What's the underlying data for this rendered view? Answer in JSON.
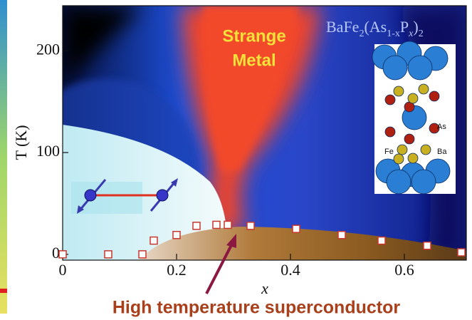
{
  "chart_data": {
    "type": "scatter",
    "x_label": "x",
    "y_label": "T (K)",
    "xlim": [
      0,
      0.7
    ],
    "ylim": [
      -5,
      245
    ],
    "xticks": [
      0,
      0.2,
      0.4,
      0.6
    ],
    "yticks": [
      0,
      100,
      200
    ],
    "marker_color": "#c8372d",
    "series": [
      {
        "x": [
          0,
          0.08,
          0.14,
          0.16,
          0.2,
          0.235,
          0.27,
          0.29,
          0.33,
          0.41,
          0.49,
          0.56,
          0.64,
          0.7
        ],
        "values": [
          0,
          0,
          0,
          13.5,
          19,
          28,
          29,
          29,
          28,
          25,
          19,
          13.5,
          8.5,
          2
        ]
      }
    ],
    "annotations": {
      "region_label": [
        "Strange",
        "Metal"
      ],
      "compound": [
        "BaFe",
        "2",
        "(As",
        "1-x",
        "P",
        "x",
        ")",
        "2"
      ],
      "atoms": [
        "As",
        "Fe",
        "Ba"
      ],
      "caption": "High temperature superconductor"
    }
  }
}
